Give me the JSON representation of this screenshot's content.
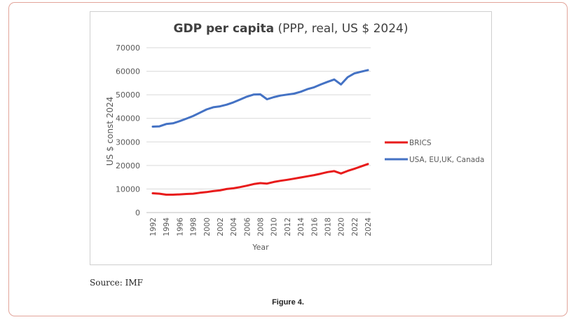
{
  "chart_data": {
    "type": "line",
    "title_bold": "GDP per capita",
    "title_rest": " (PPP, real, US $ 2024)",
    "xlabel": "Year",
    "ylabel": "US $ const 2024",
    "ylim": [
      0,
      70000
    ],
    "yticks": [
      0,
      10000,
      20000,
      30000,
      40000,
      50000,
      60000,
      70000
    ],
    "ytick_labels": [
      "0",
      "10000",
      "20000",
      "30000",
      "40000",
      "50000",
      "60000",
      "70000"
    ],
    "x": [
      1992,
      1993,
      1994,
      1995,
      1996,
      1997,
      1998,
      1999,
      2000,
      2001,
      2002,
      2003,
      2004,
      2005,
      2006,
      2007,
      2008,
      2009,
      2010,
      2011,
      2012,
      2013,
      2014,
      2015,
      2016,
      2017,
      2018,
      2019,
      2020,
      2021,
      2022,
      2023,
      2024
    ],
    "xtick_labels": [
      "1992",
      "1994",
      "1996",
      "1998",
      "2000",
      "2002",
      "2004",
      "2006",
      "2008",
      "2010",
      "2012",
      "2014",
      "2016",
      "2018",
      "2020",
      "2022",
      "2024"
    ],
    "grid": true,
    "legend_position": "right",
    "series": [
      {
        "name": "BRICS",
        "color": "#e81b1b",
        "values": [
          8200,
          8000,
          7600,
          7600,
          7700,
          7900,
          8000,
          8400,
          8700,
          9100,
          9400,
          10000,
          10300,
          10800,
          11400,
          12100,
          12500,
          12300,
          13000,
          13500,
          13900,
          14400,
          14900,
          15400,
          15900,
          16500,
          17200,
          17600,
          16600,
          17700,
          18600,
          19600,
          20600
        ]
      },
      {
        "name": "USA, EU,UK, Canada",
        "color": "#4472c4",
        "values": [
          36500,
          36600,
          37600,
          37900,
          38800,
          39900,
          41000,
          42400,
          43800,
          44700,
          45100,
          45800,
          46800,
          48000,
          49200,
          50100,
          50200,
          48100,
          49000,
          49700,
          50100,
          50500,
          51300,
          52400,
          53200,
          54400,
          55500,
          56500,
          54400,
          57500,
          59100,
          59800,
          60500
        ]
      }
    ]
  },
  "source": "Source: IMF",
  "figure_caption": "Figure 4."
}
